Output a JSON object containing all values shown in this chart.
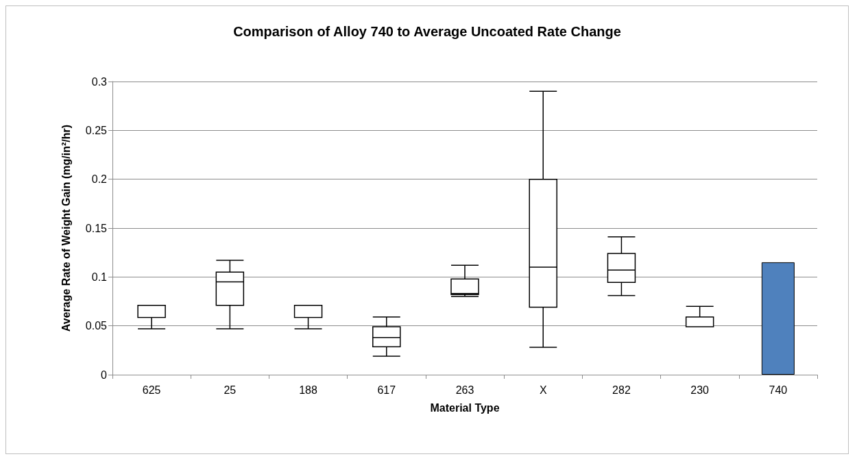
{
  "chart_data": {
    "type": "box",
    "title": "Comparison of Alloy 740 to Average Uncoated Rate Change",
    "xlabel": "Material Type",
    "ylabel": "Average Rate of Weight Gain (mg/in²/hr)",
    "categories": [
      "625",
      "25",
      "188",
      "617",
      "263",
      "X",
      "282",
      "230",
      "740"
    ],
    "series": [
      {
        "color": "#000000",
        "boxes": [
          {
            "low": 0.047,
            "q1": 0.0585,
            "median": 0.071,
            "q3": 0.071,
            "high": 0.071
          },
          {
            "low": 0.047,
            "q1": 0.071,
            "median": 0.095,
            "q3": 0.105,
            "high": 0.117
          },
          {
            "low": 0.047,
            "q1": 0.0585,
            "median": 0.071,
            "q3": 0.071,
            "high": 0.071
          },
          {
            "low": 0.019,
            "q1": 0.0285,
            "median": 0.038,
            "q3": 0.049,
            "high": 0.059
          },
          {
            "low": 0.08,
            "q1": 0.082,
            "median": 0.083,
            "q3": 0.098,
            "high": 0.112
          },
          {
            "low": 0.028,
            "q1": 0.069,
            "median": 0.11,
            "q3": 0.2,
            "high": 0.29
          },
          {
            "low": 0.081,
            "q1": 0.0945,
            "median": 0.107,
            "q3": 0.124,
            "high": 0.141
          },
          {
            "low": 0.049,
            "q1": 0.049,
            "median": 0.049,
            "q3": 0.059,
            "high": 0.07
          },
          null
        ]
      },
      {
        "type": "bar",
        "color": "#4f81bd",
        "values": [
          null,
          null,
          null,
          null,
          null,
          null,
          null,
          null,
          0.115
        ]
      }
    ],
    "ylim": [
      0,
      0.3
    ],
    "yticks": [
      0,
      0.05,
      0.1,
      0.15,
      0.2,
      0.25,
      0.3
    ],
    "grid": "y"
  }
}
